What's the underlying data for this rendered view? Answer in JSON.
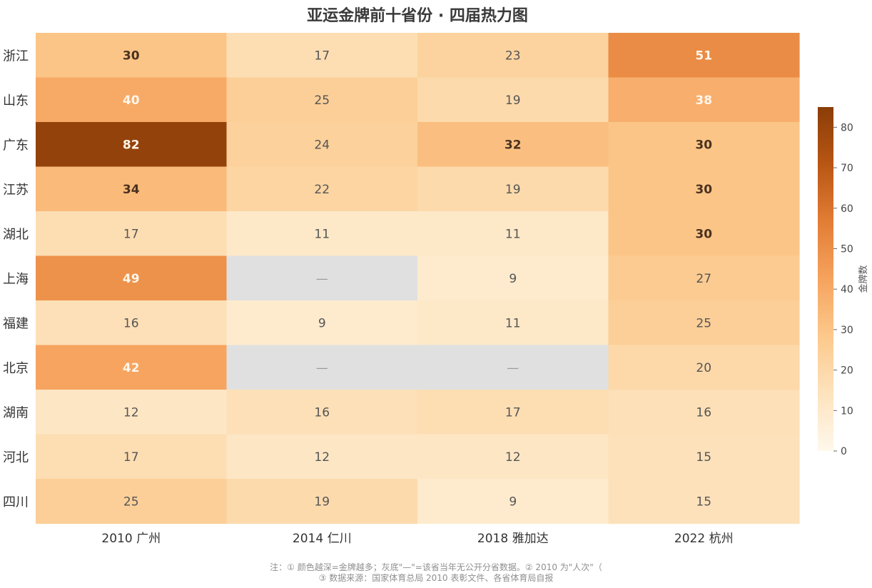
{
  "chart_data": {
    "type": "heatmap",
    "title": "亚运金牌前十省份 · 四届热力图",
    "columns": [
      "2010 广州",
      "2014 仁川",
      "2018 雅加达",
      "2022 杭州"
    ],
    "rows": [
      "浙江",
      "山东",
      "广东",
      "江苏",
      "湖北",
      "上海",
      "福建",
      "北京",
      "湖南",
      "河北",
      "四川"
    ],
    "values": [
      [
        30,
        17,
        23,
        51
      ],
      [
        40,
        25,
        19,
        38
      ],
      [
        82,
        24,
        32,
        30
      ],
      [
        34,
        22,
        19,
        30
      ],
      [
        17,
        11,
        11,
        30
      ],
      [
        49,
        null,
        9,
        27
      ],
      [
        16,
        9,
        11,
        25
      ],
      [
        42,
        null,
        null,
        20
      ],
      [
        12,
        16,
        17,
        16
      ],
      [
        17,
        12,
        12,
        15
      ],
      [
        25,
        19,
        9,
        15
      ]
    ],
    "missing_label": "—",
    "colorbar": {
      "label": "金牌数",
      "ticks": [
        0,
        10,
        20,
        30,
        40,
        50,
        60,
        70,
        80
      ],
      "range": [
        0,
        85
      ],
      "colors": [
        "#fff8ec",
        "#fde3bd",
        "#fcc98c",
        "#f6a35e",
        "#e27d35",
        "#b85614",
        "#8a3d08"
      ],
      "missing_color": "#e0e0e0"
    },
    "bold_threshold": 30,
    "light_text_threshold": 38
  },
  "notes": {
    "line1": "注：① 颜色越深=金牌越多；灰底\"—\"=该省当年无公开分省数据。② 2010 为\"人次\"（",
    "line2": "③ 数据来源：国家体育总局 2010 表彰文件、各省体育局自报"
  }
}
